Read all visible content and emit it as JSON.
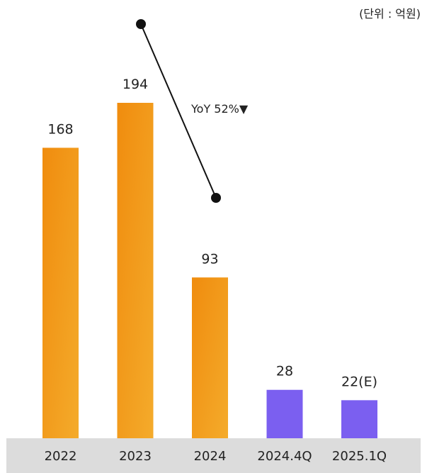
{
  "unit_label": "(단위 : 억원)",
  "annotation": "YoY 52%▼",
  "colors": {
    "bar_main_top": "#f08c0e",
    "bar_main_bottom": "#f4ab2b",
    "bar_recent": "#7b5ff0",
    "axis_band": "#dcdcdc",
    "line": "#111111"
  },
  "chart_data": {
    "type": "bar",
    "categories": [
      "2022",
      "2023",
      "2024",
      "2024.4Q",
      "2025.1Q"
    ],
    "values": [
      168,
      194,
      93,
      28,
      22
    ],
    "value_labels": [
      "168",
      "194",
      "93",
      "28",
      "22(E)"
    ],
    "ylim": [
      0,
      194
    ]
  }
}
